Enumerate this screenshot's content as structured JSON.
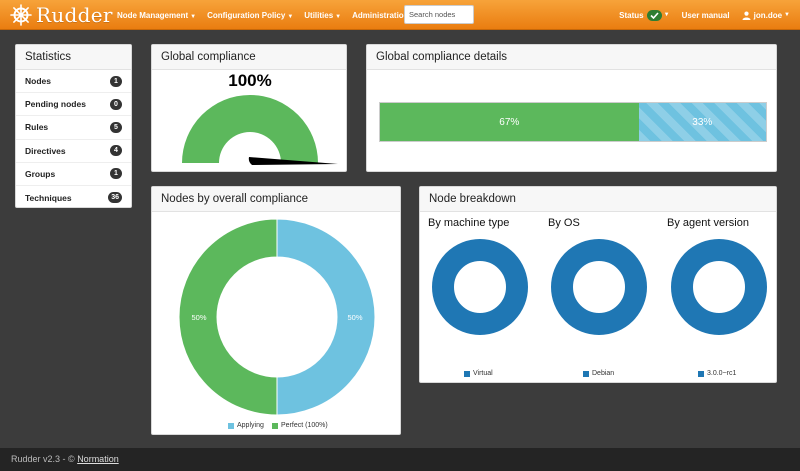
{
  "navbar": {
    "brand": "Rudder",
    "menu": [
      {
        "label": "Node Management"
      },
      {
        "label": "Configuration Policy"
      },
      {
        "label": "Utilities"
      },
      {
        "label": "Administration"
      }
    ],
    "search_placeholder": "Search nodes",
    "status_label": "Status",
    "user_manual_label": "User manual",
    "user_label": "jon.doe"
  },
  "statistics": {
    "title": "Statistics",
    "items": [
      {
        "label": "Nodes",
        "count": "1"
      },
      {
        "label": "Pending nodes",
        "count": "0"
      },
      {
        "label": "Rules",
        "count": "5"
      },
      {
        "label": "Directives",
        "count": "4"
      },
      {
        "label": "Groups",
        "count": "1"
      },
      {
        "label": "Techniques",
        "count": "36"
      }
    ]
  },
  "global_compliance": {
    "title": "Global compliance",
    "value_label": "100%",
    "value": 100,
    "color": "#5cb85c"
  },
  "compliance_details": {
    "title": "Global compliance details",
    "segments": [
      {
        "label": "67%",
        "percent": 67,
        "color": "#5cb85c"
      },
      {
        "label": "33%",
        "percent": 33,
        "color": "#6ec2e0"
      }
    ]
  },
  "nodes_by_compliance": {
    "title": "Nodes by overall compliance",
    "slices": [
      {
        "label": "50%",
        "value": 50,
        "color": "#6ec2e0",
        "legend": "Applying"
      },
      {
        "label": "50%",
        "value": 50,
        "color": "#5cb85c",
        "legend": "Perfect (100%)"
      }
    ]
  },
  "node_breakdown": {
    "title": "Node breakdown",
    "color": "#1f77b4",
    "charts": [
      {
        "title": "By machine type",
        "legend": "Virtual"
      },
      {
        "title": "By OS",
        "legend": "Debian"
      },
      {
        "title": "By agent version",
        "legend": "3.0.0~rc1"
      }
    ]
  },
  "footer": {
    "text": "Rudder v2.3 - ©",
    "link": "Normation"
  }
}
